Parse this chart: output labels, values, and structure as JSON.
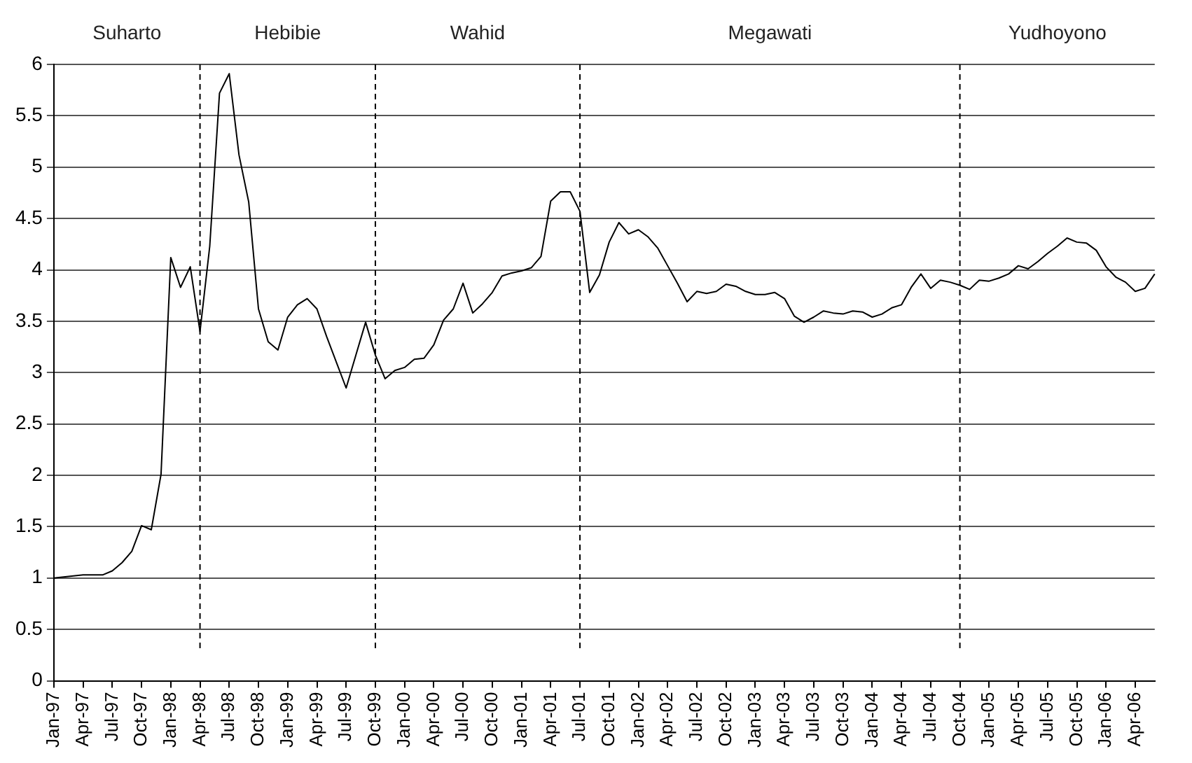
{
  "chart_data": {
    "type": "line",
    "categories": [
      "Jan-97",
      null,
      null,
      "Apr-97",
      null,
      null,
      "Jul-97",
      null,
      null,
      "Oct-97",
      null,
      null,
      "Jan-98",
      null,
      null,
      "Apr-98",
      null,
      null,
      "Jul-98",
      null,
      null,
      "Oct-98",
      null,
      null,
      "Jan-99",
      null,
      null,
      "Apr-99",
      null,
      null,
      "Jul-99",
      null,
      null,
      "Oct-99",
      null,
      null,
      "Jan-00",
      null,
      null,
      "Apr-00",
      null,
      null,
      "Jul-00",
      null,
      null,
      "Oct-00",
      null,
      null,
      "Jan-01",
      null,
      null,
      "Apr-01",
      null,
      null,
      "Jul-01",
      null,
      null,
      "Oct-01",
      null,
      null,
      "Jan-02",
      null,
      null,
      "Apr-02",
      null,
      null,
      "Jul-02",
      null,
      null,
      "Oct-02",
      null,
      null,
      "Jan-03",
      null,
      null,
      "Apr-03",
      null,
      null,
      "Jul-03",
      null,
      null,
      "Oct-03",
      null,
      null,
      "Jan-04",
      null,
      null,
      "Apr-04",
      null,
      null,
      "Jul-04",
      null,
      null,
      "Oct-04",
      null,
      null,
      "Jan-05",
      null,
      null,
      "Apr-05",
      null,
      null,
      "Jul-05",
      null,
      null,
      "Oct-05",
      null,
      null,
      "Jan-06",
      null,
      null,
      "Apr-06",
      null,
      null
    ],
    "series": [
      {
        "color": "#000000",
        "values": [
          1.0,
          1.01,
          1.02,
          1.03,
          1.03,
          1.03,
          1.07,
          1.15,
          1.26,
          1.51,
          1.47,
          2.01,
          4.12,
          3.83,
          4.03,
          3.4,
          4.23,
          5.72,
          5.91,
          5.12,
          4.66,
          3.62,
          3.3,
          3.22,
          3.54,
          3.66,
          3.72,
          3.62,
          3.35,
          3.1,
          2.85,
          3.17,
          3.49,
          3.17,
          2.94,
          3.02,
          3.05,
          3.13,
          3.14,
          3.27,
          3.51,
          3.62,
          3.87,
          3.58,
          3.67,
          3.78,
          3.94,
          3.97,
          3.99,
          4.02,
          4.13,
          4.67,
          4.76,
          4.76,
          4.57,
          3.78,
          3.95,
          4.27,
          4.46,
          4.35,
          4.39,
          4.32,
          4.21,
          4.04,
          3.87,
          3.69,
          3.79,
          3.77,
          3.79,
          3.86,
          3.84,
          3.79,
          3.76,
          3.76,
          3.78,
          3.72,
          3.55,
          3.49,
          3.54,
          3.6,
          3.58,
          3.57,
          3.6,
          3.59,
          3.54,
          3.57,
          3.63,
          3.66,
          3.83,
          3.96,
          3.82,
          3.9,
          3.88,
          3.85,
          3.81,
          3.9,
          3.89,
          3.92,
          3.96,
          4.04,
          4.01,
          4.08,
          4.16,
          4.23,
          4.31,
          4.27,
          4.26,
          4.19,
          4.03,
          3.93,
          3.88,
          3.79,
          3.82,
          3.96
        ]
      }
    ],
    "ylim": [
      0,
      6
    ],
    "yticks": [
      0,
      0.5,
      1,
      1.5,
      2,
      2.5,
      3,
      3.5,
      4,
      4.5,
      5,
      5.5,
      6
    ],
    "grid": "y",
    "legend": false,
    "marker": "none",
    "line_style": "solid",
    "ref_lines": [
      {
        "axis": "x",
        "value": "Apr-98",
        "color": "#000000",
        "line_style": "dashed"
      },
      {
        "axis": "x",
        "value": "Oct-99",
        "color": "#000000",
        "line_style": "dashed"
      },
      {
        "axis": "x",
        "value": "Jul-01",
        "color": "#000000",
        "line_style": "dashed"
      },
      {
        "axis": "x",
        "value": "Oct-04",
        "color": "#000000",
        "line_style": "dashed"
      }
    ],
    "annotations": [
      "Suharto",
      "Hebibie",
      "Wahid",
      "Megawati",
      "Yudhoyono"
    ]
  }
}
